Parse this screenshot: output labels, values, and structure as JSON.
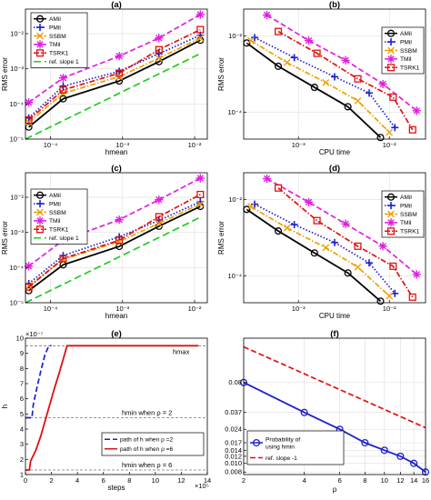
{
  "chart_data": [
    {
      "type": "line",
      "panel": "(a)",
      "xlabel": "hmean",
      "ylabel": "RMS error",
      "xscale": "log",
      "yscale": "log",
      "xlim": [
        4.5e-05,
        0.015
      ],
      "ylim": [
        1e-05,
        0.05
      ],
      "xticks": [
        0.0001,
        0.001,
        0.01
      ],
      "xtick_labels": [
        "10⁻⁴",
        "10⁻³",
        "10⁻²"
      ],
      "yticks": [
        1e-05,
        0.0001,
        0.001,
        0.01
      ],
      "ytick_labels": [
        "10⁻⁵",
        "10⁻⁴",
        "10⁻³",
        "10⁻²"
      ],
      "grid": true,
      "legend_position": "top-left",
      "series": [
        {
          "name": "AMil",
          "color": "#000000",
          "dash": "solid",
          "marker": "circle",
          "x": [
            5e-05,
            0.00015,
            0.0009,
            0.0032,
            0.012
          ],
          "y": [
            2.2e-05,
            0.00014,
            0.00045,
            0.0016,
            0.0065
          ]
        },
        {
          "name": "PMil",
          "color": "#1f1fd0",
          "dash": "dot",
          "marker": "plus",
          "x": [
            5e-05,
            0.00015,
            0.0009,
            0.0032,
            0.012
          ],
          "y": [
            4e-05,
            0.00032,
            0.00085,
            0.0027,
            0.009
          ]
        },
        {
          "name": "SSBM",
          "color": "#f0a000",
          "dash": "dashdot",
          "marker": "x",
          "x": [
            5e-05,
            0.00015,
            0.0009,
            0.0032,
            0.012
          ],
          "y": [
            3e-05,
            0.0002,
            0.0006,
            0.002,
            0.0075
          ]
        },
        {
          "name": "TMil",
          "color": "#e020e0",
          "dash": "dash",
          "marker": "asterisk",
          "x": [
            5e-05,
            0.00015,
            0.0009,
            0.0032,
            0.012
          ],
          "y": [
            0.00011,
            0.00055,
            0.0023,
            0.0075,
            0.035
          ]
        },
        {
          "name": "TSRK1",
          "color": "#e01010",
          "dash": "dashdot",
          "marker": "square",
          "x": [
            5e-05,
            0.00015,
            0.0009,
            0.0032,
            0.012
          ],
          "y": [
            3.5e-05,
            0.00025,
            0.00075,
            0.0035,
            0.013
          ]
        },
        {
          "name": "ref. slope 1",
          "color": "#22cc22",
          "dash": "longdash",
          "marker": "none",
          "x": [
            4.5e-05,
            0.012
          ],
          "y": [
            1e-05,
            0.0027
          ]
        }
      ]
    },
    {
      "type": "line",
      "panel": "(b)",
      "xlabel": "CPU time",
      "ylabel": "RMS error",
      "xscale": "log",
      "yscale": "log",
      "xlim": [
        0.00025,
        0.025
      ],
      "ylim": [
        2e-05,
        0.05
      ],
      "xticks": [
        0.001,
        0.01
      ],
      "xtick_labels": [
        "10⁻³",
        "10⁻²"
      ],
      "yticks": [
        0.0001,
        0.01
      ],
      "ytick_labels": [
        "10⁻⁴",
        "10⁻²"
      ],
      "grid": true,
      "legend_position": "top-right",
      "series": [
        {
          "name": "AMil",
          "color": "#000000",
          "dash": "solid",
          "marker": "circle",
          "x": [
            0.00027,
            0.0006,
            0.0015,
            0.0035,
            0.008
          ],
          "y": [
            0.0065,
            0.0016,
            0.00045,
            0.00014,
            2.2e-05
          ]
        },
        {
          "name": "PMil",
          "color": "#1f1fd0",
          "dash": "dot",
          "marker": "plus",
          "x": [
            0.00033,
            0.0009,
            0.0025,
            0.006,
            0.0115
          ],
          "y": [
            0.009,
            0.0027,
            0.00085,
            0.00032,
            4e-05
          ]
        },
        {
          "name": "SSBM",
          "color": "#f0a000",
          "dash": "dashdot",
          "marker": "x",
          "x": [
            0.0003,
            0.00075,
            0.002,
            0.0045,
            0.01
          ],
          "y": [
            0.0075,
            0.002,
            0.0006,
            0.0002,
            3e-05
          ]
        },
        {
          "name": "TMil",
          "color": "#e020e0",
          "dash": "dash",
          "marker": "asterisk",
          "x": [
            0.00045,
            0.0013,
            0.0033,
            0.0085,
            0.02
          ],
          "y": [
            0.035,
            0.0075,
            0.0023,
            0.00055,
            0.00011
          ]
        },
        {
          "name": "TSRK1",
          "color": "#e01010",
          "dash": "dashdot",
          "marker": "square",
          "x": [
            0.0006,
            0.0016,
            0.0045,
            0.011,
            0.018
          ],
          "y": [
            0.013,
            0.0035,
            0.00075,
            0.00025,
            3.5e-05
          ]
        }
      ]
    },
    {
      "type": "line",
      "panel": "(c)",
      "xlabel": "hmean",
      "ylabel": "RMS error",
      "xscale": "log",
      "yscale": "log",
      "xlim": [
        4.5e-05,
        0.015
      ],
      "ylim": [
        1e-05,
        0.05
      ],
      "xticks": [
        0.0001,
        0.001,
        0.01
      ],
      "xtick_labels": [
        "10⁻⁴",
        "10⁻³",
        "10⁻²"
      ],
      "yticks": [
        1e-05,
        0.0001,
        0.001,
        0.01
      ],
      "ytick_labels": [
        "10⁻⁵",
        "10⁻⁴",
        "10⁻³",
        "10⁻²"
      ],
      "grid": true,
      "legend_position": "top-left",
      "series": [
        {
          "name": "AMil",
          "color": "#000000",
          "dash": "solid",
          "marker": "circle",
          "x": [
            5e-05,
            0.00015,
            0.0009,
            0.0032,
            0.012
          ],
          "y": [
            2.2e-05,
            0.00012,
            0.0004,
            0.0015,
            0.0055
          ]
        },
        {
          "name": "PMil",
          "color": "#1f1fd0",
          "dash": "dot",
          "marker": "plus",
          "x": [
            5e-05,
            0.00015,
            0.0009,
            0.0032,
            0.012
          ],
          "y": [
            3.5e-05,
            0.00022,
            0.00075,
            0.0022,
            0.0075
          ]
        },
        {
          "name": "SSBM",
          "color": "#f0a000",
          "dash": "dashdot",
          "marker": "x",
          "x": [
            5e-05,
            0.00015,
            0.0009,
            0.0032,
            0.012
          ],
          "y": [
            3e-05,
            0.00017,
            0.00055,
            0.0018,
            0.0065
          ]
        },
        {
          "name": "TMil",
          "color": "#e020e0",
          "dash": "dash",
          "marker": "asterisk",
          "x": [
            5e-05,
            0.00015,
            0.0009,
            0.0032,
            0.012
          ],
          "y": [
            0.00011,
            0.0006,
            0.0023,
            0.0085,
            0.035
          ]
        },
        {
          "name": "TSRK1",
          "color": "#e01010",
          "dash": "dashdot",
          "marker": "square",
          "x": [
            5e-05,
            0.00015,
            0.0009,
            0.0032,
            0.012
          ],
          "y": [
            2.8e-05,
            0.00018,
            0.0006,
            0.0028,
            0.012
          ]
        },
        {
          "name": "ref. slope 1",
          "color": "#22cc22",
          "dash": "longdash",
          "marker": "none",
          "x": [
            4.5e-05,
            0.012
          ],
          "y": [
            1e-05,
            0.0027
          ]
        }
      ]
    },
    {
      "type": "line",
      "panel": "(d)",
      "xlabel": "CPU time",
      "ylabel": "RMS error",
      "xscale": "log",
      "yscale": "log",
      "xlim": [
        0.00025,
        0.025
      ],
      "ylim": [
        2e-05,
        0.05
      ],
      "xticks": [
        0.001,
        0.01
      ],
      "xtick_labels": [
        "10⁻³",
        "10⁻²"
      ],
      "yticks": [
        0.0001,
        0.01
      ],
      "ytick_labels": [
        "10⁻⁴",
        "10⁻²"
      ],
      "grid": true,
      "legend_position": "top-right",
      "series": [
        {
          "name": "AMil",
          "color": "#000000",
          "dash": "solid",
          "marker": "circle",
          "x": [
            0.00027,
            0.0006,
            0.0015,
            0.0035,
            0.008
          ],
          "y": [
            0.0055,
            0.0015,
            0.0004,
            0.00012,
            2.2e-05
          ]
        },
        {
          "name": "PMil",
          "color": "#1f1fd0",
          "dash": "dot",
          "marker": "plus",
          "x": [
            0.00033,
            0.0009,
            0.0025,
            0.006,
            0.0115
          ],
          "y": [
            0.0075,
            0.0022,
            0.00075,
            0.00022,
            3.5e-05
          ]
        },
        {
          "name": "SSBM",
          "color": "#f0a000",
          "dash": "dashdot",
          "marker": "x",
          "x": [
            0.0003,
            0.00075,
            0.002,
            0.0045,
            0.01
          ],
          "y": [
            0.0065,
            0.0018,
            0.00055,
            0.00017,
            3e-05
          ]
        },
        {
          "name": "TMil",
          "color": "#e020e0",
          "dash": "dash",
          "marker": "asterisk",
          "x": [
            0.00045,
            0.0013,
            0.0033,
            0.0085,
            0.02
          ],
          "y": [
            0.035,
            0.0085,
            0.0023,
            0.0006,
            0.00011
          ]
        },
        {
          "name": "TSRK1",
          "color": "#e01010",
          "dash": "dashdot",
          "marker": "square",
          "x": [
            0.0006,
            0.0016,
            0.0045,
            0.011,
            0.018
          ],
          "y": [
            0.02,
            0.0028,
            0.0006,
            0.00018,
            2.8e-05
          ]
        }
      ]
    },
    {
      "type": "line",
      "panel": "(e)",
      "xlabel": "steps",
      "ylabel": "h",
      "x_multiplier": "×10⁵",
      "y_multiplier": "×10⁻⁷",
      "xlim": [
        0,
        14
      ],
      "ylim": [
        1,
        10
      ],
      "xticks": [
        0,
        2,
        4,
        6,
        8,
        10,
        12,
        14
      ],
      "xtick_labels": [
        "0",
        "2",
        "4",
        "6",
        "8",
        "10",
        "12",
        "14"
      ],
      "yticks": [
        1,
        2,
        3,
        4,
        5,
        6,
        7,
        8,
        9,
        10
      ],
      "ytick_labels": [
        "1",
        "2",
        "3",
        "4",
        "5",
        "6",
        "7",
        "8",
        "9",
        "10"
      ],
      "grid": false,
      "legend_position": "bottom-right",
      "hlines": [
        {
          "y": 9.5,
          "label": "hmax"
        },
        {
          "y": 4.75,
          "label": "hmin when ρ = 2"
        },
        {
          "y": 1.3,
          "label": "hmin when ρ = 6"
        }
      ],
      "annotations": [
        "hmax",
        "hmin when ρ = 2",
        "hmin when ρ = 6"
      ],
      "series": [
        {
          "name": "path of h when ρ =2",
          "color": "#1f1fd0",
          "dash": "dash",
          "x": [
            0,
            0.5,
            0.6,
            0.9,
            1.2,
            1.5,
            1.8,
            2.0
          ],
          "y": [
            4.75,
            4.75,
            5.6,
            6.8,
            7.9,
            8.9,
            9.5,
            9.5
          ]
        },
        {
          "name": "path of h when ρ =6",
          "color": "#e01010",
          "dash": "solid",
          "x": [
            0,
            0.3,
            0.4,
            0.8,
            1.2,
            1.5,
            1.8,
            2.2,
            2.6,
            3.0,
            3.2,
            13.3
          ],
          "y": [
            1.3,
            1.3,
            1.9,
            2.6,
            3.6,
            4.5,
            5.4,
            6.6,
            7.7,
            8.9,
            9.5,
            9.5
          ]
        }
      ]
    },
    {
      "type": "line",
      "panel": "(f)",
      "xlabel": "ρ",
      "yscale": "log",
      "xscale": "log",
      "xlim": [
        2,
        16
      ],
      "ylim": [
        0.0075,
        0.25
      ],
      "xticks": [
        2,
        4,
        6,
        8,
        10,
        12,
        14,
        16
      ],
      "xtick_labels": [
        "2",
        "4",
        "6",
        "8",
        "10",
        "12",
        "14",
        "16"
      ],
      "yticks": [
        0.008,
        0.01,
        0.012,
        0.014,
        0.017,
        0.024,
        0.037,
        0.08
      ],
      "ytick_labels": [
        "0.008",
        "0.010",
        "0.012",
        "0.014",
        "0.017",
        "0.024",
        "0.037",
        "0.08"
      ],
      "grid": true,
      "legend_position": "bottom-left",
      "series": [
        {
          "name": "Probability of using hmin",
          "color": "#1f1fd0",
          "dash": "solid",
          "marker": "circle",
          "x": [
            2,
            4,
            6,
            8,
            10,
            12,
            14,
            16
          ],
          "y": [
            0.08,
            0.037,
            0.024,
            0.017,
            0.014,
            0.012,
            0.01,
            0.008
          ]
        },
        {
          "name": "ref. slope -1",
          "color": "#e01010",
          "dash": "dash",
          "marker": "none",
          "x": [
            2,
            16
          ],
          "y": [
            0.2,
            0.025
          ]
        }
      ]
    }
  ]
}
